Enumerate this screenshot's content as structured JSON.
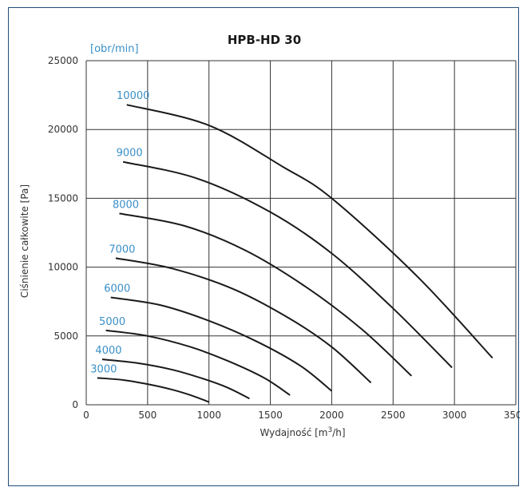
{
  "chart_data": {
    "type": "line",
    "title": "HPB-HD 30",
    "xlabel": "Wydajność [m",
    "xlabel_sup": "3",
    "xlabel_end": "/h]",
    "ylabel": "Ciśnienie całkowite [Pa]",
    "series_unit": "[obr/min]",
    "xlim": [
      0,
      3500
    ],
    "ylim": [
      0,
      25000
    ],
    "x_ticks": [
      0,
      500,
      1000,
      1500,
      2000,
      2500,
      3000,
      3500
    ],
    "y_ticks": [
      0,
      5000,
      10000,
      15000,
      20000,
      25000
    ],
    "grid": true,
    "colors": {
      "curve": "#1a1a1a",
      "speed_label": "#3a8fc7",
      "grid": "#333333"
    },
    "series": [
      {
        "name": "3000",
        "x": [
          90,
          300,
          500,
          700,
          850,
          1000
        ],
        "y": [
          1950,
          1800,
          1500,
          1100,
          700,
          200
        ]
      },
      {
        "name": "4000",
        "x": [
          130,
          400,
          700,
          950,
          1150,
          1330
        ],
        "y": [
          3300,
          3050,
          2550,
          1900,
          1250,
          450
        ]
      },
      {
        "name": "5000",
        "x": [
          160,
          500,
          850,
          1150,
          1450,
          1660
        ],
        "y": [
          5400,
          5000,
          4200,
          3200,
          1950,
          700
        ]
      },
      {
        "name": "6000",
        "x": [
          200,
          600,
          1000,
          1400,
          1750,
          2000
        ],
        "y": [
          7800,
          7250,
          6100,
          4550,
          2800,
          1000
        ]
      },
      {
        "name": "7000",
        "x": [
          240,
          700,
          1200,
          1650,
          2000,
          2320
        ],
        "y": [
          10650,
          9900,
          8400,
          6300,
          4200,
          1600
        ]
      },
      {
        "name": "8000",
        "x": [
          270,
          800,
          1300,
          1800,
          2250,
          2650
        ],
        "y": [
          13900,
          13000,
          11200,
          8500,
          5450,
          2100
        ]
      },
      {
        "name": "9000",
        "x": [
          300,
          900,
          1500,
          2000,
          2500,
          2980
        ],
        "y": [
          17650,
          16450,
          14000,
          11000,
          7000,
          2700
        ]
      },
      {
        "name": "10000",
        "x": [
          330,
          1000,
          1600,
          2000,
          2700,
          3310
        ],
        "y": [
          21800,
          20300,
          17300,
          15000,
          9300,
          3400
        ]
      }
    ]
  }
}
